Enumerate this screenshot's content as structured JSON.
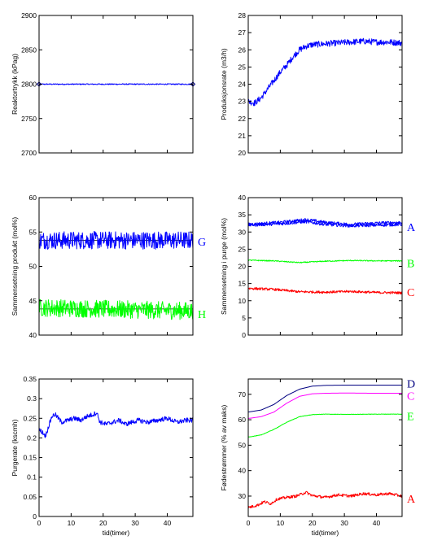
{
  "colors": {
    "blue": "#0000ff",
    "green": "#00ff00",
    "red": "#ff0000",
    "navy": "#000080",
    "magenta": "#ff00ff",
    "black": "#000000"
  },
  "chart_data": [
    {
      "type": "line",
      "ylabel": "Reaktortrykk (kPag)",
      "xlabel": "",
      "ylim": [
        2700,
        2900
      ],
      "yticks": [
        2700,
        2750,
        2800,
        2850,
        2900
      ],
      "xlim": [
        0,
        48
      ],
      "xticks": [
        0,
        10,
        20,
        30,
        40
      ],
      "show_xticklabels": false,
      "reference_lines": [],
      "series": [
        {
          "color": "#0000ff",
          "values": [
            [
              0,
              2800
            ],
            [
              48,
              2800
            ]
          ],
          "noise": 0.8,
          "marker_ends": true
        }
      ],
      "series_labels": []
    },
    {
      "type": "line",
      "ylabel": "Produksjonsrate (m3/h)",
      "xlabel": "",
      "ylim": [
        20,
        28
      ],
      "yticks": [
        20,
        21,
        22,
        23,
        24,
        25,
        26,
        27,
        28
      ],
      "xlim": [
        0,
        48
      ],
      "xticks": [
        0,
        10,
        20,
        30,
        40
      ],
      "show_xticklabels": false,
      "reference_lines": [],
      "series": [
        {
          "color": "#0000ff",
          "values": [
            [
              0,
              23.0
            ],
            [
              2,
              22.9
            ],
            [
              4,
              23.2
            ],
            [
              6,
              23.7
            ],
            [
              8,
              24.2
            ],
            [
              10,
              24.7
            ],
            [
              12,
              25.1
            ],
            [
              14,
              25.6
            ],
            [
              16,
              26.0
            ],
            [
              18,
              26.2
            ],
            [
              20,
              26.3
            ],
            [
              24,
              26.35
            ],
            [
              28,
              26.4
            ],
            [
              32,
              26.45
            ],
            [
              36,
              26.5
            ],
            [
              40,
              26.45
            ],
            [
              44,
              26.45
            ],
            [
              48,
              26.4
            ]
          ],
          "noise": 0.18
        }
      ],
      "series_labels": []
    },
    {
      "type": "line",
      "ylabel": "Sammensetning produkt (mol%)",
      "xlabel": "",
      "ylim": [
        40,
        60
      ],
      "yticks": [
        40,
        45,
        50,
        55,
        60
      ],
      "xlim": [
        0,
        48
      ],
      "xticks": [
        0,
        10,
        20,
        30,
        40
      ],
      "show_xticklabels": false,
      "reference_lines": [
        53.8,
        43.8
      ],
      "series": [
        {
          "name": "G",
          "color": "#0000ff",
          "values": [
            [
              0,
              53.8
            ],
            [
              48,
              53.8
            ]
          ],
          "noise": 1.3
        },
        {
          "name": "H",
          "color": "#00ff00",
          "values": [
            [
              0,
              44.0
            ],
            [
              48,
              43.5
            ]
          ],
          "noise": 1.3
        }
      ],
      "series_labels": [
        {
          "text": "G",
          "color": "#0000ff",
          "y": 53.6
        },
        {
          "text": "H",
          "color": "#00ff00",
          "y": 43.1
        }
      ]
    },
    {
      "type": "line",
      "ylabel": "Sammensetning i purge (mol%)",
      "xlabel": "",
      "ylim": [
        0,
        40
      ],
      "yticks": [
        0,
        5,
        10,
        15,
        20,
        25,
        30,
        35,
        40
      ],
      "xlim": [
        0,
        48
      ],
      "xticks": [
        0,
        10,
        20,
        30,
        40
      ],
      "show_xticklabels": false,
      "reference_lines": [],
      "series": [
        {
          "name": "A",
          "color": "#0000ff",
          "values": [
            [
              0,
              32.2
            ],
            [
              10,
              32.8
            ],
            [
              18,
              33.6
            ],
            [
              24,
              32.8
            ],
            [
              32,
              32.2
            ],
            [
              40,
              32.6
            ],
            [
              48,
              32.8
            ]
          ],
          "noise": 0.45
        },
        {
          "name": "A",
          "color": "#0000ff",
          "values": [
            [
              0,
              32.0
            ],
            [
              10,
              32.4
            ],
            [
              18,
              33.0
            ],
            [
              24,
              32.2
            ],
            [
              32,
              31.8
            ],
            [
              40,
              32.0
            ],
            [
              48,
              32.2
            ]
          ],
          "noise": 0.45
        },
        {
          "name": "B",
          "color": "#00ff00",
          "values": [
            [
              0,
              21.8
            ],
            [
              8,
              21.6
            ],
            [
              16,
              21.1
            ],
            [
              24,
              21.5
            ],
            [
              32,
              21.7
            ],
            [
              40,
              21.6
            ],
            [
              48,
              21.6
            ]
          ],
          "noise": 0.15
        },
        {
          "name": "C",
          "color": "#ff0000",
          "values": [
            [
              0,
              13.6
            ],
            [
              8,
              13.3
            ],
            [
              16,
              12.6
            ],
            [
              24,
              12.5
            ],
            [
              32,
              12.7
            ],
            [
              40,
              12.4
            ],
            [
              48,
              12.3
            ]
          ],
          "noise": 0.35
        }
      ],
      "series_labels": [
        {
          "text": "A",
          "color": "#0000ff",
          "y": 31.5
        },
        {
          "text": "B",
          "color": "#00ff00",
          "y": 21.0
        },
        {
          "text": "C",
          "color": "#ff0000",
          "y": 12.5
        }
      ]
    },
    {
      "type": "line",
      "ylabel": "Purgerate (kscmh)",
      "xlabel": "tid(timer)",
      "ylim": [
        0,
        0.35
      ],
      "yticks": [
        0,
        0.05,
        0.1,
        0.15,
        0.2,
        0.25,
        0.3,
        0.35
      ],
      "ytick_labels": [
        "0",
        "0.05",
        "0.1",
        "0.15",
        "0.2",
        "0.25",
        "0.3",
        "0.35"
      ],
      "xlim": [
        0,
        48
      ],
      "xticks": [
        0,
        10,
        20,
        30,
        40
      ],
      "show_xticklabels": true,
      "reference_lines": [],
      "series": [
        {
          "color": "#0000ff",
          "values": [
            [
              0,
              0.22
            ],
            [
              1,
              0.215
            ],
            [
              2,
              0.205
            ],
            [
              3,
              0.23
            ],
            [
              4,
              0.255
            ],
            [
              5,
              0.26
            ],
            [
              7,
              0.24
            ],
            [
              9,
              0.245
            ],
            [
              11,
              0.25
            ],
            [
              13,
              0.245
            ],
            [
              15,
              0.255
            ],
            [
              17,
              0.26
            ],
            [
              18,
              0.265
            ],
            [
              19,
              0.24
            ],
            [
              21,
              0.235
            ],
            [
              23,
              0.24
            ],
            [
              25,
              0.245
            ],
            [
              27,
              0.235
            ],
            [
              29,
              0.24
            ],
            [
              31,
              0.245
            ],
            [
              34,
              0.24
            ],
            [
              37,
              0.245
            ],
            [
              40,
              0.25
            ],
            [
              43,
              0.24
            ],
            [
              46,
              0.245
            ],
            [
              48,
              0.245
            ]
          ],
          "noise": 0.006
        }
      ],
      "series_labels": []
    },
    {
      "type": "line",
      "ylabel": "Fødestrømmer (% av maks)",
      "xlabel": "tid(timer)",
      "ylim": [
        22,
        76
      ],
      "yticks": [
        30,
        40,
        50,
        60,
        70
      ],
      "xlim": [
        0,
        48
      ],
      "xticks": [
        0,
        10,
        20,
        30,
        40
      ],
      "show_xticklabels": true,
      "reference_lines": [],
      "series": [
        {
          "name": "D",
          "color": "#000080",
          "values": [
            [
              0,
              63.0
            ],
            [
              4,
              63.8
            ],
            [
              8,
              66.0
            ],
            [
              12,
              69.5
            ],
            [
              16,
              72.0
            ],
            [
              20,
              73.2
            ],
            [
              24,
              73.5
            ],
            [
              30,
              73.6
            ],
            [
              40,
              73.6
            ],
            [
              48,
              73.6
            ]
          ],
          "noise": 0
        },
        {
          "name": "C",
          "color": "#ff00ff",
          "values": [
            [
              0,
              60.5
            ],
            [
              4,
              61.2
            ],
            [
              8,
              63.0
            ],
            [
              12,
              66.5
            ],
            [
              16,
              69.2
            ],
            [
              20,
              70.2
            ],
            [
              24,
              70.4
            ],
            [
              30,
              70.5
            ],
            [
              40,
              70.4
            ],
            [
              48,
              70.4
            ]
          ],
          "noise": 0
        },
        {
          "name": "E",
          "color": "#00ff00",
          "values": [
            [
              0,
              53.2
            ],
            [
              4,
              54.0
            ],
            [
              8,
              56.2
            ],
            [
              12,
              59.0
            ],
            [
              16,
              61.2
            ],
            [
              20,
              62.0
            ],
            [
              24,
              62.2
            ],
            [
              30,
              62.1
            ],
            [
              40,
              62.2
            ],
            [
              48,
              62.2
            ]
          ],
          "noise": 0.08
        },
        {
          "name": "A",
          "color": "#ff0000",
          "values": [
            [
              0,
              25.5
            ],
            [
              3,
              26.5
            ],
            [
              5,
              27.8
            ],
            [
              7,
              27.0
            ],
            [
              9,
              28.8
            ],
            [
              12,
              29.5
            ],
            [
              15,
              30.0
            ],
            [
              18,
              31.5
            ],
            [
              20,
              30.2
            ],
            [
              24,
              29.5
            ],
            [
              28,
              30.5
            ],
            [
              32,
              30.0
            ],
            [
              36,
              31.0
            ],
            [
              40,
              30.5
            ],
            [
              44,
              31.0
            ],
            [
              48,
              30.0
            ]
          ],
          "noise": 0.55
        }
      ],
      "series_labels": [
        {
          "text": "D",
          "color": "#000080",
          "y": 74.2
        },
        {
          "text": "C",
          "color": "#ff00ff",
          "y": 69.5
        },
        {
          "text": "E",
          "color": "#00ff00",
          "y": 61.5
        },
        {
          "text": "A",
          "color": "#ff0000",
          "y": 29.0
        }
      ]
    }
  ]
}
